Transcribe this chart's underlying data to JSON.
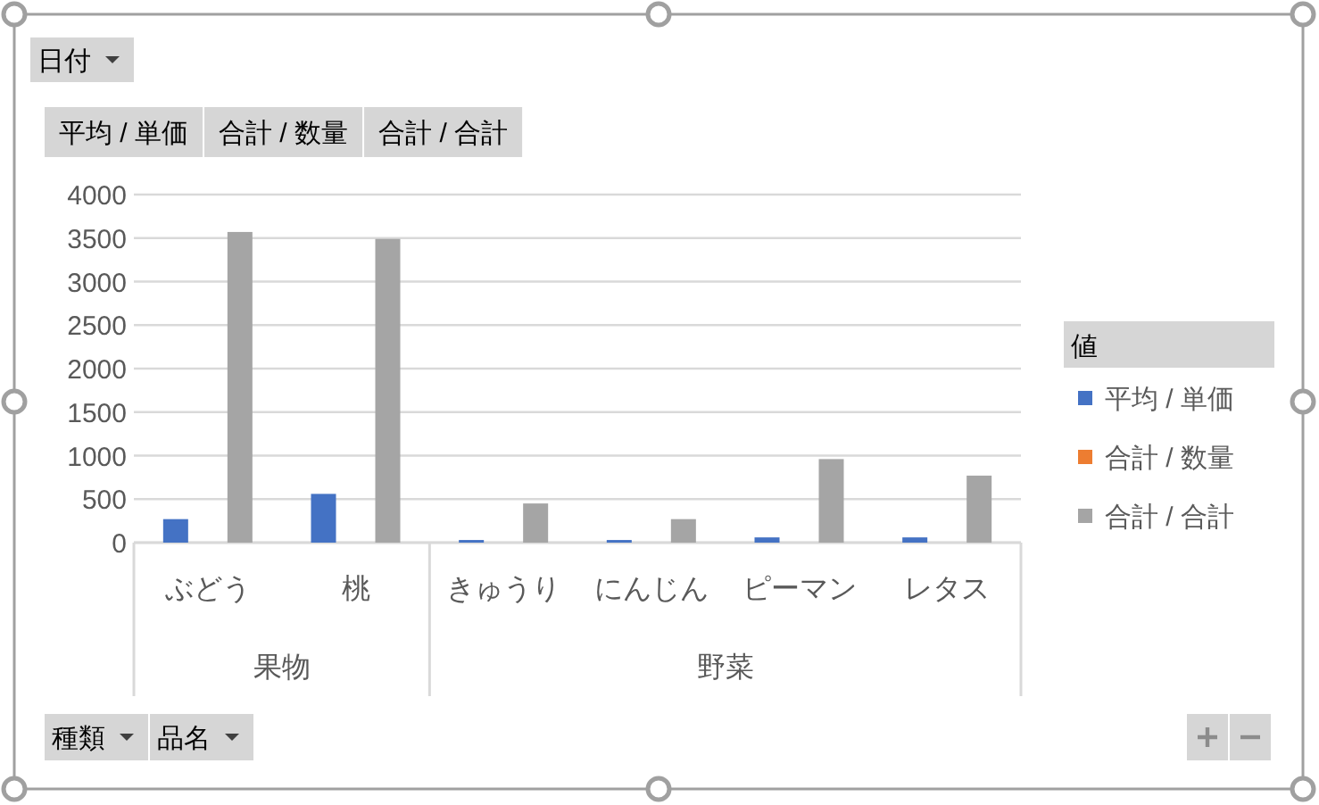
{
  "chart_data": {
    "type": "bar",
    "categories": [
      "ぶどう",
      "桃",
      "きゅうり",
      "にんじん",
      "ピーマン",
      "レタス"
    ],
    "series": [
      {
        "name": "平均 / 単価",
        "color": "#4472c4",
        "values": [
          270,
          560,
          30,
          30,
          60,
          60
        ]
      },
      {
        "name": "合計 / 数量",
        "color": "#ed7d31",
        "values": [
          null,
          null,
          null,
          null,
          null,
          null
        ]
      },
      {
        "name": "合計 / 合計",
        "color": "#a5a5a5",
        "values": [
          3570,
          3490,
          450,
          270,
          960,
          770
        ]
      }
    ],
    "ylim": [
      0,
      4000
    ],
    "yticks": [
      0,
      500,
      1000,
      1500,
      2000,
      2500,
      3000,
      3500,
      4000
    ],
    "grid": "y",
    "legend": "right",
    "legend_title": "値",
    "annotations": [
      "日付",
      "種類",
      "品名",
      "果物",
      "野菜"
    ]
  }
}
